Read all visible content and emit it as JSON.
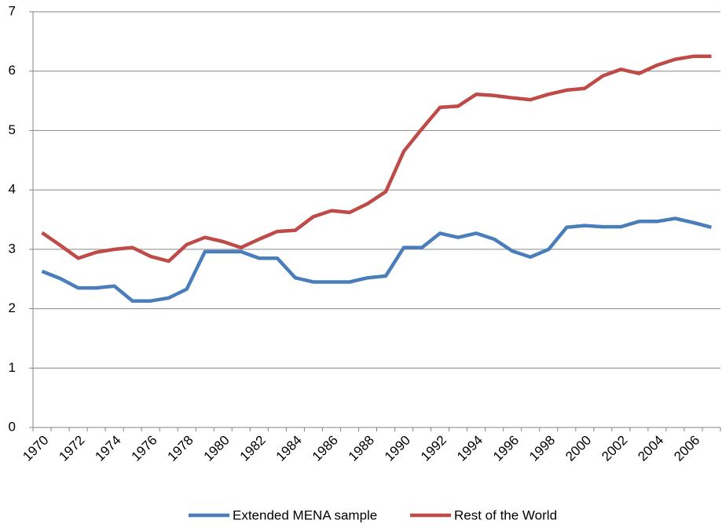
{
  "chart_data": {
    "type": "line",
    "categories": [
      "1970",
      null,
      "1972",
      null,
      "1974",
      null,
      "1976",
      null,
      "1978",
      null,
      "1980",
      null,
      "1982",
      null,
      "1984",
      null,
      "1986",
      null,
      "1988",
      null,
      "1990",
      null,
      "1992",
      null,
      "1994",
      null,
      "1996",
      null,
      "1998",
      null,
      "2000",
      null,
      "2002",
      null,
      "2004",
      null,
      "2006",
      null
    ],
    "series": [
      {
        "name": "Extended MENA sample",
        "color": "#4a7ebb",
        "values": [
          2.63,
          2.51,
          2.35,
          2.35,
          2.38,
          2.13,
          2.13,
          2.18,
          2.33,
          2.96,
          2.96,
          2.96,
          2.85,
          2.85,
          2.52,
          2.45,
          2.45,
          2.45,
          2.52,
          2.55,
          3.03,
          3.03,
          3.27,
          3.2,
          3.27,
          3.17,
          2.97,
          2.87,
          3.0,
          3.37,
          3.4,
          3.38,
          3.38,
          3.47,
          3.47,
          3.52,
          3.45,
          3.37
        ]
      },
      {
        "name": "Rest of the World",
        "color": "#be4b48",
        "values": [
          3.28,
          3.07,
          2.85,
          2.95,
          3.0,
          3.03,
          2.88,
          2.8,
          3.08,
          3.2,
          3.13,
          3.03,
          3.17,
          3.3,
          3.32,
          3.55,
          3.65,
          3.62,
          3.77,
          3.97,
          4.65,
          5.03,
          5.39,
          5.41,
          5.61,
          5.59,
          5.55,
          5.52,
          5.61,
          5.68,
          5.71,
          5.92,
          6.03,
          5.96,
          6.1,
          6.2,
          6.25,
          6.25
        ]
      }
    ],
    "ylim": [
      0,
      7
    ],
    "yticks": [
      0,
      1,
      2,
      3,
      4,
      5,
      6,
      7
    ],
    "grid": true,
    "legend": "bottom"
  }
}
